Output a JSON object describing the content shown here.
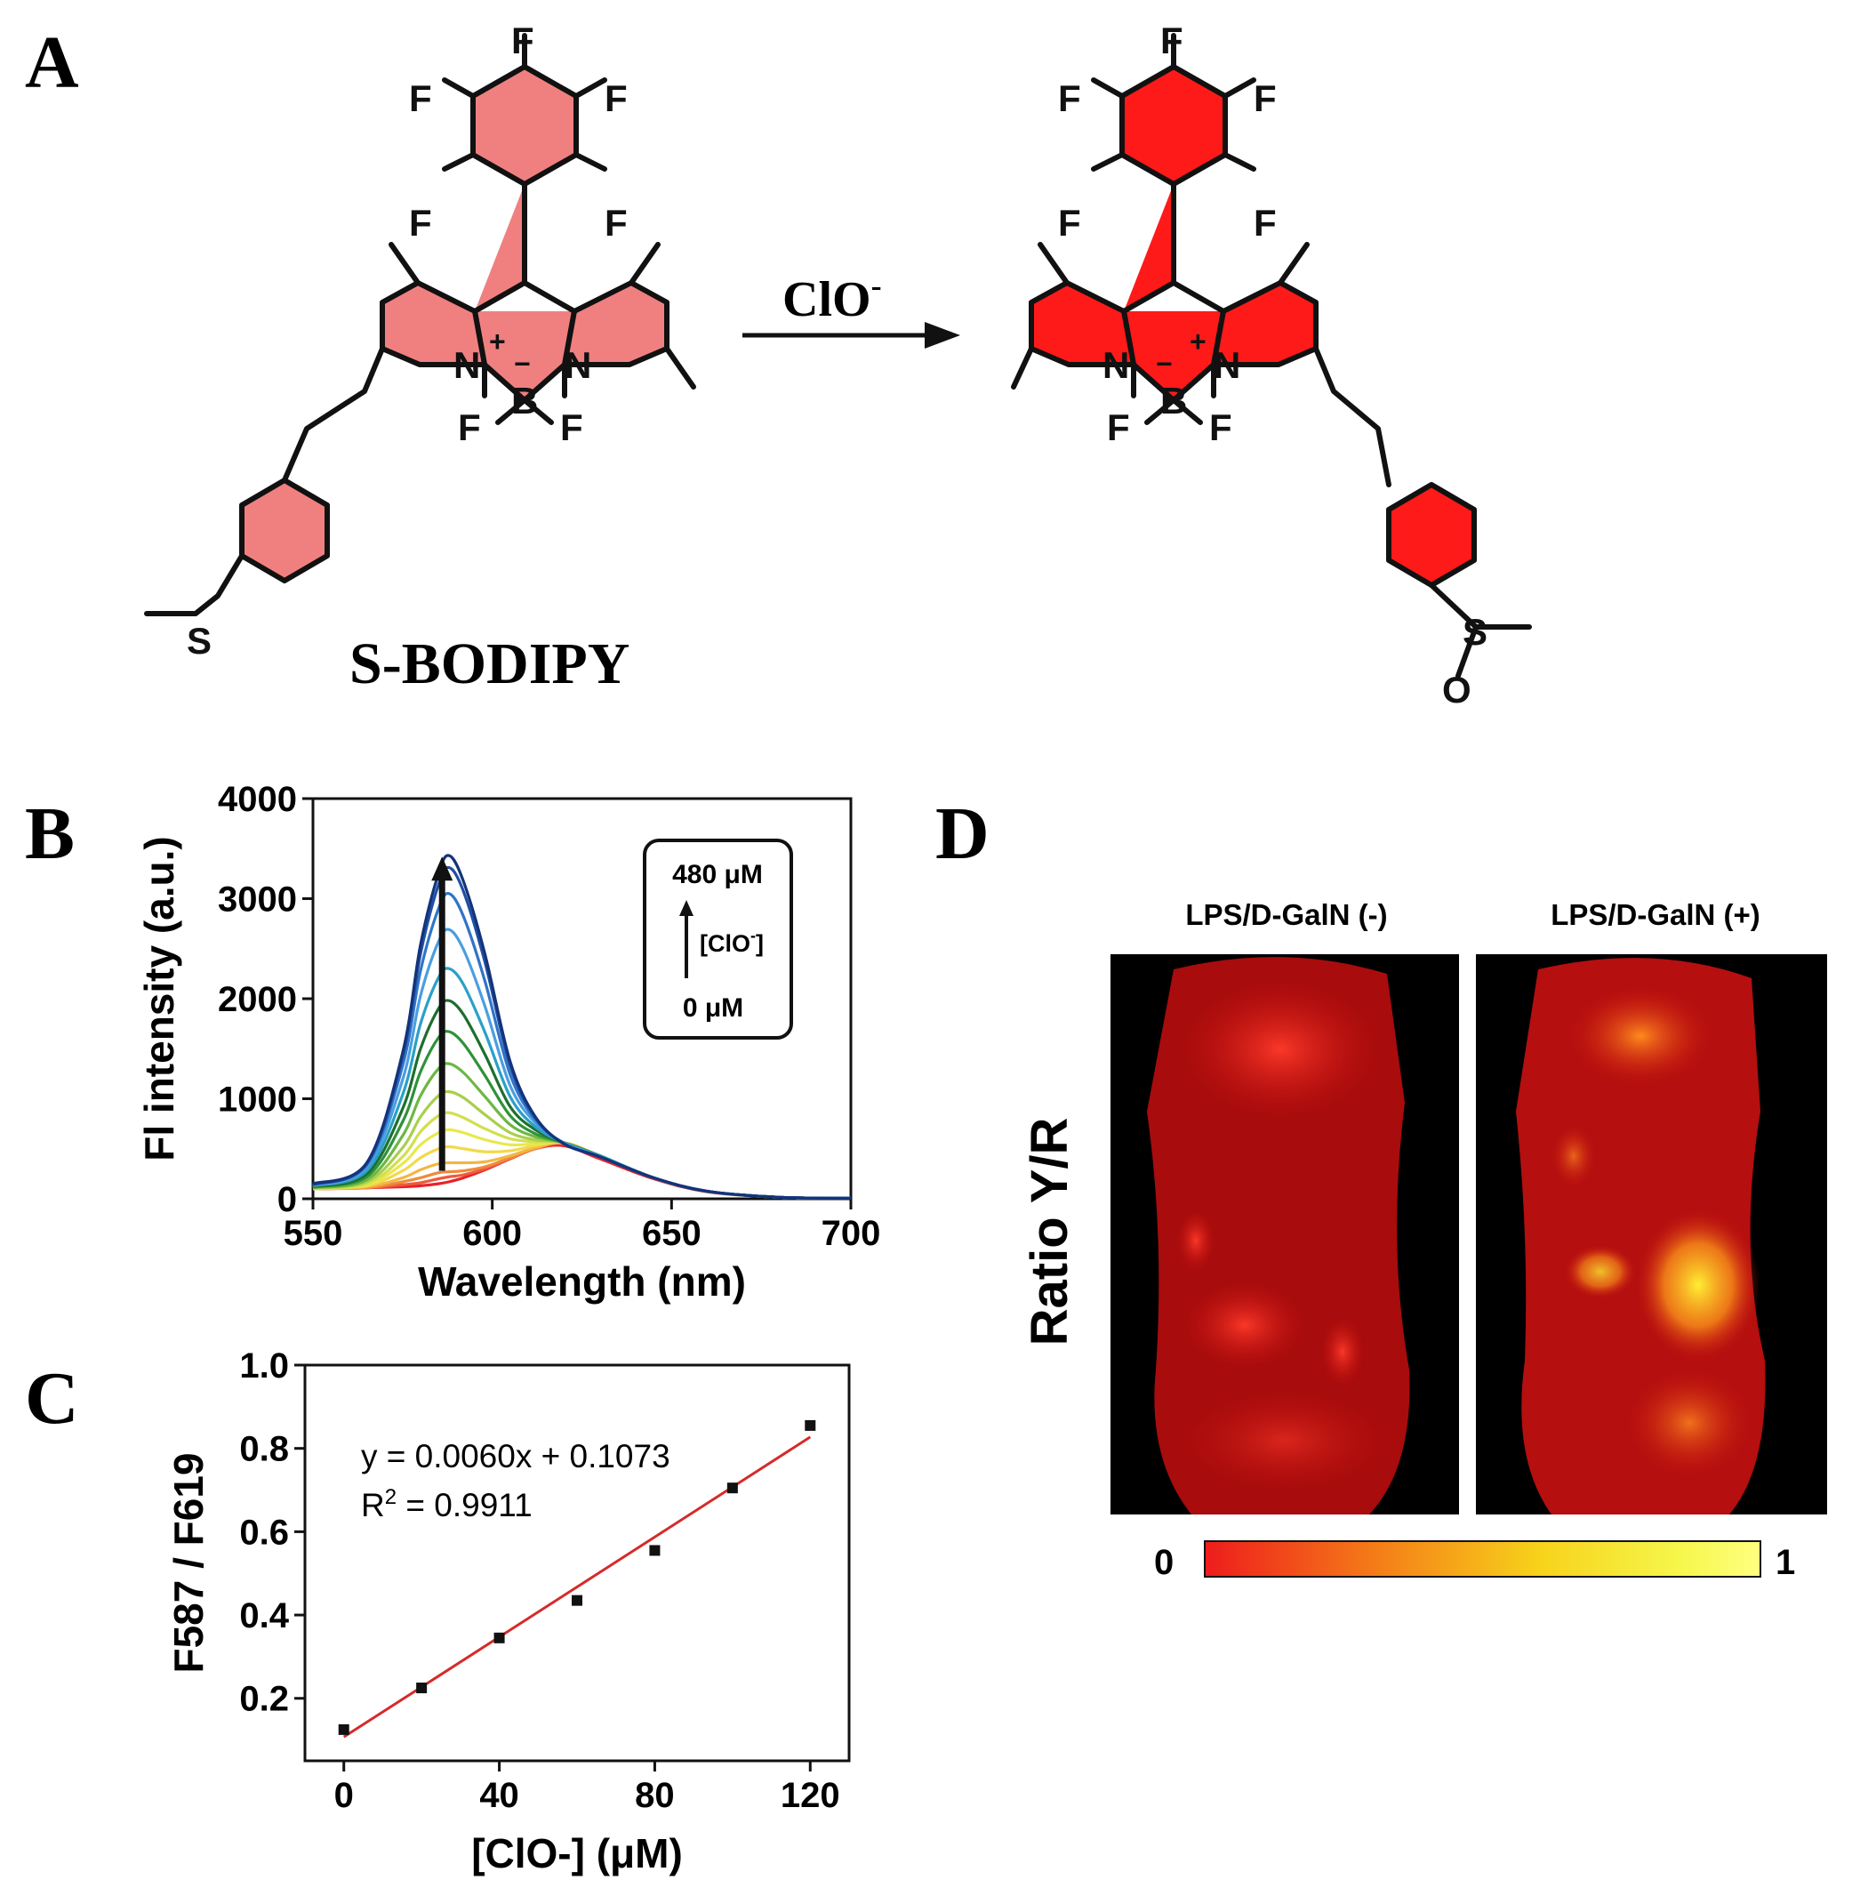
{
  "panels": {
    "A": {
      "letter": "A",
      "reagent": "ClO",
      "reagent_charge": "-",
      "compound_name": "S-BODIPY",
      "reactant_ring_color": "#f08080",
      "product_ring_color": "#ff1a1a",
      "atoms": {
        "F": "F",
        "N": "N",
        "B": "B",
        "S": "S",
        "O": "O",
        "plus": "+",
        "minus": "−"
      }
    },
    "B": {
      "letter": "B",
      "inset_top": "480 μM",
      "inset_mid": "[ClO",
      "inset_mid_sup": "-",
      "inset_mid_end": "]",
      "inset_bottom": "0 μM"
    },
    "C": {
      "letter": "C",
      "equation": "y = 0.0060x + 0.1073",
      "r2_prefix": "R",
      "r2_sup": "2",
      "r2_value": " = 0.9911"
    },
    "D": {
      "letter": "D",
      "ylabel": "Ratio Y/R",
      "label_left": "LPS/D-GalN (-)",
      "label_right": "LPS/D-GalN (+)",
      "colorbar_min": "0",
      "colorbar_max": "1",
      "colorbar_colors": [
        "#ee1c1c",
        "#f47a18",
        "#f7d21a",
        "#f6f64a",
        "#ffff80"
      ]
    }
  },
  "chart_data": [
    {
      "type": "line",
      "panel": "B",
      "xlabel": "Wavelength (nm)",
      "ylabel": "Fl intensity (a.u.)",
      "xlim": [
        550,
        700
      ],
      "ylim": [
        0,
        4000
      ],
      "xticks": [
        550,
        600,
        650,
        700
      ],
      "yticks": [
        0,
        1000,
        2000,
        3000,
        4000
      ],
      "x": [
        550,
        565,
        575,
        580,
        585,
        588,
        592,
        598,
        605,
        612,
        620,
        630,
        645,
        660,
        680,
        700
      ],
      "series_colors": [
        "#e8212a",
        "#ee5a3a",
        "#f08a3c",
        "#f3b643",
        "#f2d94a",
        "#e9e84c",
        "#d2df4d",
        "#a9cf4a",
        "#6db744",
        "#2e9238",
        "#1d6f2c",
        "#2aa0c8",
        "#4a9ee0",
        "#2f74c8",
        "#1f4fa4",
        "#14337a"
      ],
      "series": [
        {
          "values": [
            100,
            110,
            120,
            130,
            150,
            170,
            210,
            290,
            400,
            500,
            530,
            400,
            200,
            70,
            15,
            5
          ]
        },
        {
          "values": [
            100,
            110,
            140,
            160,
            200,
            220,
            240,
            300,
            400,
            500,
            550,
            420,
            210,
            75,
            15,
            5
          ]
        },
        {
          "values": [
            100,
            110,
            170,
            210,
            260,
            270,
            280,
            320,
            410,
            500,
            560,
            430,
            210,
            75,
            15,
            5
          ]
        },
        {
          "values": [
            100,
            120,
            210,
            290,
            350,
            360,
            360,
            370,
            430,
            510,
            560,
            430,
            210,
            75,
            15,
            5
          ]
        },
        {
          "values": [
            100,
            130,
            280,
            410,
            500,
            520,
            500,
            470,
            480,
            530,
            560,
            430,
            210,
            75,
            15,
            5
          ]
        },
        {
          "values": [
            100,
            140,
            350,
            540,
            660,
            690,
            660,
            590,
            540,
            550,
            560,
            430,
            210,
            75,
            15,
            5
          ]
        },
        {
          "values": [
            100,
            150,
            420,
            670,
            830,
            860,
            810,
            700,
            600,
            570,
            560,
            430,
            210,
            75,
            15,
            5
          ]
        },
        {
          "values": [
            110,
            170,
            510,
            820,
            1030,
            1070,
            1010,
            840,
            660,
            590,
            560,
            430,
            210,
            75,
            15,
            5
          ]
        },
        {
          "values": [
            110,
            190,
            630,
            1030,
            1300,
            1350,
            1260,
            1020,
            740,
            620,
            560,
            430,
            210,
            75,
            15,
            5
          ]
        },
        {
          "values": [
            120,
            220,
            770,
            1270,
            1610,
            1670,
            1550,
            1230,
            830,
            650,
            560,
            430,
            210,
            75,
            15,
            5
          ]
        },
        {
          "values": [
            120,
            250,
            900,
            1500,
            1900,
            1980,
            1840,
            1440,
            920,
            690,
            560,
            430,
            210,
            75,
            15,
            5
          ]
        },
        {
          "values": [
            130,
            280,
            1040,
            1750,
            2210,
            2300,
            2140,
            1660,
            1020,
            720,
            560,
            430,
            210,
            75,
            15,
            5
          ]
        },
        {
          "values": [
            130,
            310,
            1190,
            2030,
            2570,
            2690,
            2490,
            1920,
            1130,
            760,
            560,
            420,
            210,
            75,
            15,
            5
          ]
        },
        {
          "values": [
            140,
            340,
            1330,
            2280,
            2900,
            3050,
            2820,
            2170,
            1240,
            790,
            550,
            420,
            210,
            75,
            15,
            5
          ]
        },
        {
          "values": [
            140,
            350,
            1420,
            2450,
            3140,
            3310,
            3070,
            2360,
            1330,
            810,
            550,
            420,
            210,
            75,
            15,
            5
          ]
        },
        {
          "values": [
            150,
            360,
            1460,
            2540,
            3250,
            3430,
            3170,
            2440,
            1370,
            820,
            550,
            420,
            210,
            75,
            15,
            5
          ]
        }
      ]
    },
    {
      "type": "scatter",
      "panel": "C",
      "xlabel": "[ClO-] (μM)",
      "ylabel": "F587 / F619",
      "xlim": [
        -10,
        130
      ],
      "ylim": [
        0.05,
        1.0
      ],
      "xticks": [
        0,
        40,
        80,
        120
      ],
      "yticks": [
        0.2,
        0.4,
        0.6,
        0.8,
        1.0
      ],
      "x": [
        0,
        20,
        40,
        60,
        80,
        100,
        120
      ],
      "y": [
        0.125,
        0.225,
        0.345,
        0.435,
        0.555,
        0.705,
        0.855
      ],
      "fit": {
        "slope": 0.006,
        "intercept": 0.1073,
        "color": "#d62a2a"
      }
    }
  ]
}
